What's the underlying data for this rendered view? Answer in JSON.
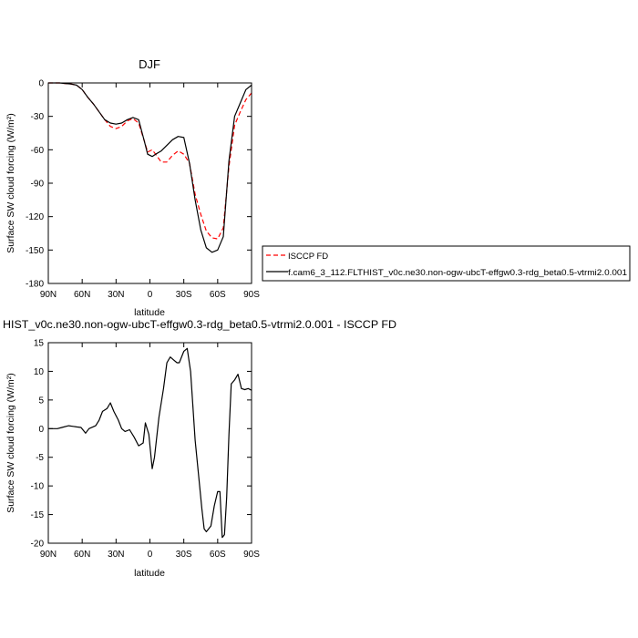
{
  "chart_data": [
    {
      "type": "line",
      "title": "DJF",
      "xlabel": "latitude",
      "ylabel": "Surface SW cloud forcing (W/m²)",
      "xticks": [
        90,
        60,
        30,
        0,
        -30,
        -60,
        -90
      ],
      "xtick_labels": [
        "90N",
        "60N",
        "30N",
        "0",
        "30S",
        "60S",
        "90S"
      ],
      "yticks": [
        0,
        -30,
        -60,
        -90,
        -120,
        -150,
        -180
      ],
      "xlim": [
        90,
        -90
      ],
      "ylim": [
        -180,
        0
      ],
      "legend_placement": "right",
      "series": [
        {
          "name": "ISCCP FD",
          "color": "#ff0000",
          "style": "dashed",
          "x": [
            90,
            85,
            80,
            75,
            70,
            65,
            60,
            55,
            50,
            45,
            40,
            35,
            30,
            25,
            20,
            15,
            10,
            5,
            2,
            -2,
            -5,
            -10,
            -15,
            -20,
            -25,
            -30,
            -35,
            -40,
            -45,
            -50,
            -55,
            -60,
            -65,
            -70,
            -75,
            -80,
            -85,
            -90
          ],
          "y": [
            0,
            0,
            0,
            -0.5,
            -1,
            -2,
            -6,
            -13,
            -19,
            -26,
            -33,
            -39,
            -41,
            -39,
            -34,
            -32,
            -36,
            -52,
            -62,
            -60,
            -64,
            -71,
            -71,
            -65,
            -61,
            -64,
            -72,
            -100,
            -118,
            -133,
            -139,
            -140,
            -130,
            -75,
            -38,
            -26,
            -15,
            -9
          ]
        },
        {
          "name": "f.cam6_3_112.FLTHIST_v0c.ne30.non-ogw-ubcT-effgw0.3-rdg_beta0.5-vtrmi2.0.001",
          "color": "#000000",
          "style": "solid",
          "x": [
            90,
            85,
            80,
            75,
            70,
            65,
            60,
            55,
            50,
            45,
            40,
            35,
            30,
            25,
            20,
            15,
            10,
            5,
            2,
            -2,
            -5,
            -10,
            -15,
            -20,
            -25,
            -30,
            -35,
            -40,
            -45,
            -50,
            -55,
            -60,
            -65,
            -70,
            -75,
            -80,
            -85,
            -90
          ],
          "y": [
            0,
            0,
            0,
            -0.5,
            -1,
            -2,
            -6,
            -13,
            -19,
            -26,
            -33,
            -36,
            -37,
            -36,
            -33,
            -31,
            -33,
            -52,
            -64,
            -66,
            -64,
            -61,
            -56,
            -51,
            -48,
            -49,
            -72,
            -105,
            -132,
            -148,
            -152,
            -150,
            -138,
            -70,
            -30,
            -18,
            -6,
            -2
          ]
        }
      ]
    },
    {
      "type": "line",
      "title": "HIST_v0c.ne30.non-ogw-ubcT-effgw0.3-rdg_beta0.5-vtrmi2.0.001 - ISCCP FD",
      "xlabel": "latitude",
      "ylabel": "Surface SW cloud forcing (W/m²)",
      "xticks": [
        90,
        60,
        30,
        0,
        -30,
        -60,
        -90
      ],
      "xtick_labels": [
        "90N",
        "60N",
        "30N",
        "0",
        "30S",
        "60S",
        "90S"
      ],
      "yticks": [
        15,
        10,
        5,
        0,
        -5,
        -10,
        -15,
        -20
      ],
      "xlim": [
        90,
        -90
      ],
      "ylim": [
        -20,
        15
      ],
      "series": [
        {
          "color": "#000000",
          "style": "solid",
          "x": [
            90,
            82,
            78,
            72,
            68,
            65,
            61,
            57,
            54,
            48,
            45,
            42,
            38,
            35,
            32,
            28,
            25,
            22,
            18,
            14,
            10,
            6,
            4,
            1,
            -2,
            -4,
            -8,
            -12,
            -15,
            -18,
            -21,
            -24,
            -26,
            -30,
            -33,
            -36,
            -38,
            -40,
            -43,
            -46,
            -48,
            -50,
            -54,
            -57,
            -60,
            -62,
            -64,
            -66,
            -68,
            -70,
            -72,
            -75,
            -78,
            -81,
            -84,
            -87,
            -90
          ],
          "y": [
            0,
            0,
            0.2,
            0.5,
            0.4,
            0.3,
            0.2,
            -0.8,
            0,
            0.5,
            1.5,
            3,
            3.5,
            4.5,
            3,
            1.5,
            0,
            -0.5,
            -0.2,
            -1.5,
            -3,
            -2.5,
            1,
            -1,
            -7,
            -5,
            2,
            7,
            11.5,
            12.5,
            12,
            11.5,
            11.5,
            13.5,
            14,
            10,
            4,
            -2,
            -8,
            -14,
            -17.5,
            -18,
            -17,
            -13.5,
            -11,
            -11,
            -19,
            -18.5,
            -12,
            -1,
            7.8,
            8.5,
            9.5,
            7,
            6.8,
            7,
            6.7
          ]
        }
      ]
    }
  ]
}
